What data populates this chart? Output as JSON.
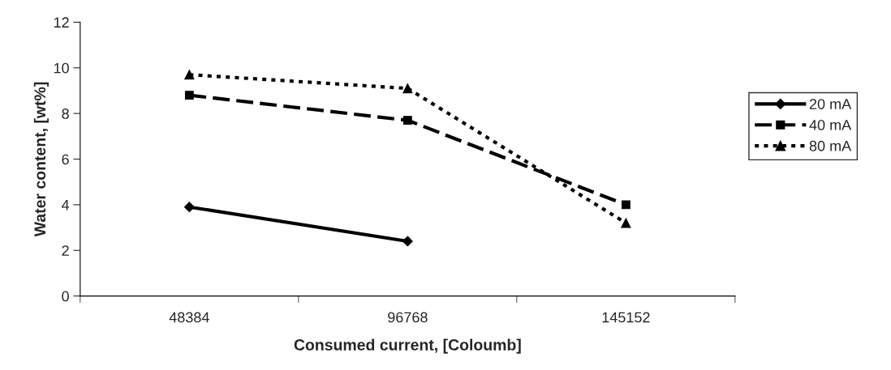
{
  "chart_data": {
    "type": "line",
    "xlabel": "Consumed current, [Coloumb]",
    "ylabel": "Water content, [wt%]",
    "categories": [
      "48384",
      "96768",
      "145152"
    ],
    "series": [
      {
        "name": "20 mA",
        "color": "#000000",
        "marker": "diamond",
        "line_style": "solid",
        "values": [
          3.9,
          2.4,
          null
        ]
      },
      {
        "name": "40 mA",
        "color": "#000000",
        "marker": "square",
        "line_style": "dashed",
        "values": [
          8.8,
          7.7,
          4.0
        ]
      },
      {
        "name": "80 mA",
        "color": "#000000",
        "marker": "triangle",
        "line_style": "dotted",
        "values": [
          9.7,
          9.1,
          3.2
        ]
      }
    ],
    "ylim": [
      0,
      12
    ],
    "yticks": [
      0,
      2,
      4,
      6,
      8,
      10,
      12
    ],
    "grid": false,
    "legend": "right"
  }
}
